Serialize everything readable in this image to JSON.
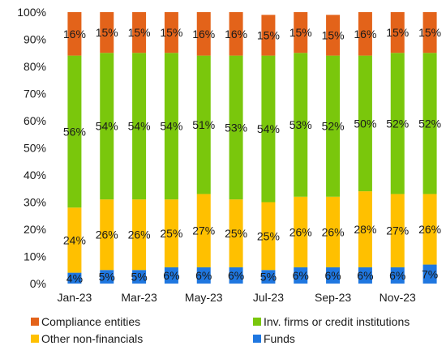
{
  "chart_data": {
    "type": "bar",
    "stacked": true,
    "title": "",
    "xlabel": "",
    "ylabel": "",
    "ylim": [
      0,
      100
    ],
    "y_ticks": [
      "0%",
      "10%",
      "20%",
      "30%",
      "40%",
      "50%",
      "60%",
      "70%",
      "80%",
      "90%",
      "100%"
    ],
    "categories": [
      "Jan-23",
      "Feb-23",
      "Mar-23",
      "Apr-23",
      "May-23",
      "Jun-23",
      "Jul-23",
      "Aug-23",
      "Sep-23",
      "Oct-23",
      "Nov-23",
      "Dec-23"
    ],
    "x_tick_labels": [
      "Jan-23",
      "",
      "Mar-23",
      "",
      "May-23",
      "",
      "Jul-23",
      "",
      "Sep-23",
      "",
      "Nov-23",
      ""
    ],
    "series": [
      {
        "name": "Funds",
        "color": "#1f77e0",
        "values": [
          4,
          5,
          5,
          6,
          6,
          6,
          5,
          6,
          6,
          6,
          6,
          7
        ],
        "labels": [
          "4%",
          "5%",
          "5%",
          "6%",
          "6%",
          "6%",
          "5%",
          "6%",
          "6%",
          "6%",
          "6%",
          "7%"
        ]
      },
      {
        "name": "Other non-financials",
        "color": "#ffc000",
        "values": [
          24,
          26,
          26,
          25,
          27,
          25,
          25,
          26,
          26,
          28,
          27,
          26
        ],
        "labels": [
          "24%",
          "26%",
          "26%",
          "25%",
          "27%",
          "25%",
          "25%",
          "26%",
          "26%",
          "28%",
          "27%",
          "26%"
        ]
      },
      {
        "name": "Inv. firms or credit institutions",
        "color": "#7ac70c",
        "values": [
          56,
          54,
          54,
          54,
          51,
          53,
          54,
          53,
          52,
          50,
          52,
          52
        ],
        "labels": [
          "56%",
          "54%",
          "54%",
          "54%",
          "51%",
          "53%",
          "54%",
          "53%",
          "52%",
          "50%",
          "52%",
          "52%"
        ]
      },
      {
        "name": "Compliance entities",
        "color": "#e3631a",
        "values": [
          16,
          15,
          15,
          15,
          16,
          16,
          15,
          15,
          15,
          16,
          15,
          15
        ],
        "labels": [
          "16%",
          "15%",
          "15%",
          "15%",
          "16%",
          "16%",
          "15%",
          "15%",
          "15%",
          "16%",
          "15%",
          "15%"
        ]
      }
    ],
    "legend": {
      "placement": "bottom",
      "entries": [
        "Compliance entities",
        "Inv. firms or credit institutions",
        "Other non-financials",
        "Funds"
      ]
    },
    "grid": false
  }
}
